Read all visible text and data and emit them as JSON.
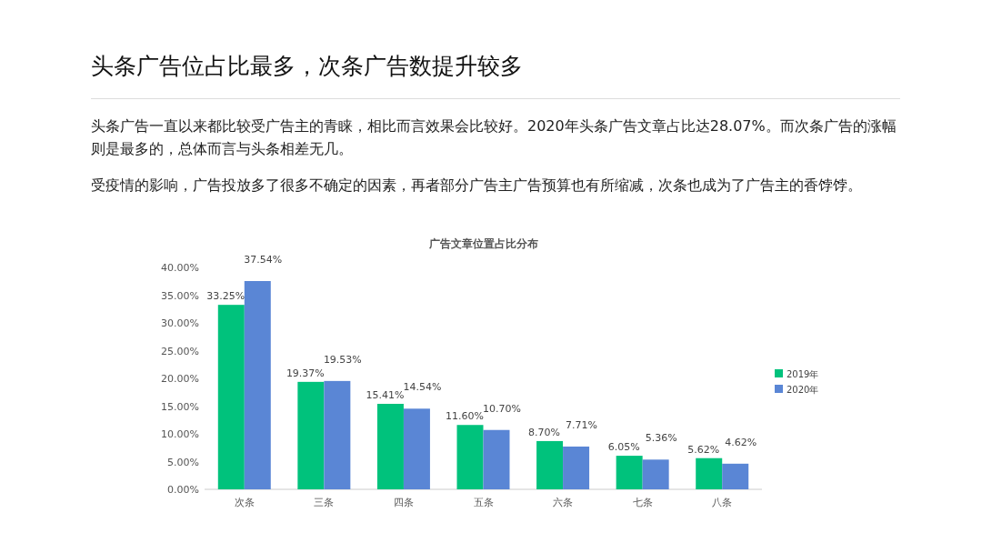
{
  "chart_data": {
    "type": "bar",
    "title": "头条广告位占比最多，次条广告数提升较多",
    "subtitle": "广告文章位置占比分布",
    "annotations": [
      "头条广告一直以来都比较受广告主的青睐，相比而言效果会比较好。2020年头条广告文章占比达28.07%。而次条广告的涨幅则是最多的，总体而言与头条相差无几。",
      "受疫情的影响，广告投放多了很多不确定的因素，再者部分广告主广告预算也有所缩减，次条也成为了广告主的香饽饽。"
    ],
    "categories": [
      "次条",
      "三条",
      "四条",
      "五条",
      "六条",
      "七条",
      "八条"
    ],
    "series": [
      {
        "name": "2019年",
        "color": "#00c27c",
        "values": [
          33.25,
          19.37,
          15.41,
          11.6,
          8.7,
          6.05,
          5.62
        ],
        "value_labels": [
          "33.25%",
          "19.37%",
          "15.41%",
          "11.60%",
          "8.70%",
          "6.05%",
          "5.62%"
        ]
      },
      {
        "name": "2020年",
        "color": "#5a86d5",
        "values": [
          37.54,
          19.53,
          14.54,
          10.7,
          7.71,
          5.36,
          4.62
        ],
        "value_labels": [
          "37.54%",
          "19.53%",
          "14.54%",
          "10.70%",
          "7.71%",
          "5.36%",
          "4.62%"
        ]
      }
    ],
    "ylim": [
      0,
      40
    ],
    "yticks": [
      {
        "value": 0,
        "label": "0.00%"
      },
      {
        "value": 5,
        "label": "5.00%"
      },
      {
        "value": 10,
        "label": "10.00%"
      },
      {
        "value": 15,
        "label": "15.00%"
      },
      {
        "value": 20,
        "label": "20.00%"
      },
      {
        "value": 25,
        "label": "25.00%"
      },
      {
        "value": 30,
        "label": "30.00%"
      },
      {
        "value": 35,
        "label": "35.00%"
      },
      {
        "value": 40,
        "label": "40.00%"
      }
    ],
    "grid": false,
    "legend": "right"
  }
}
